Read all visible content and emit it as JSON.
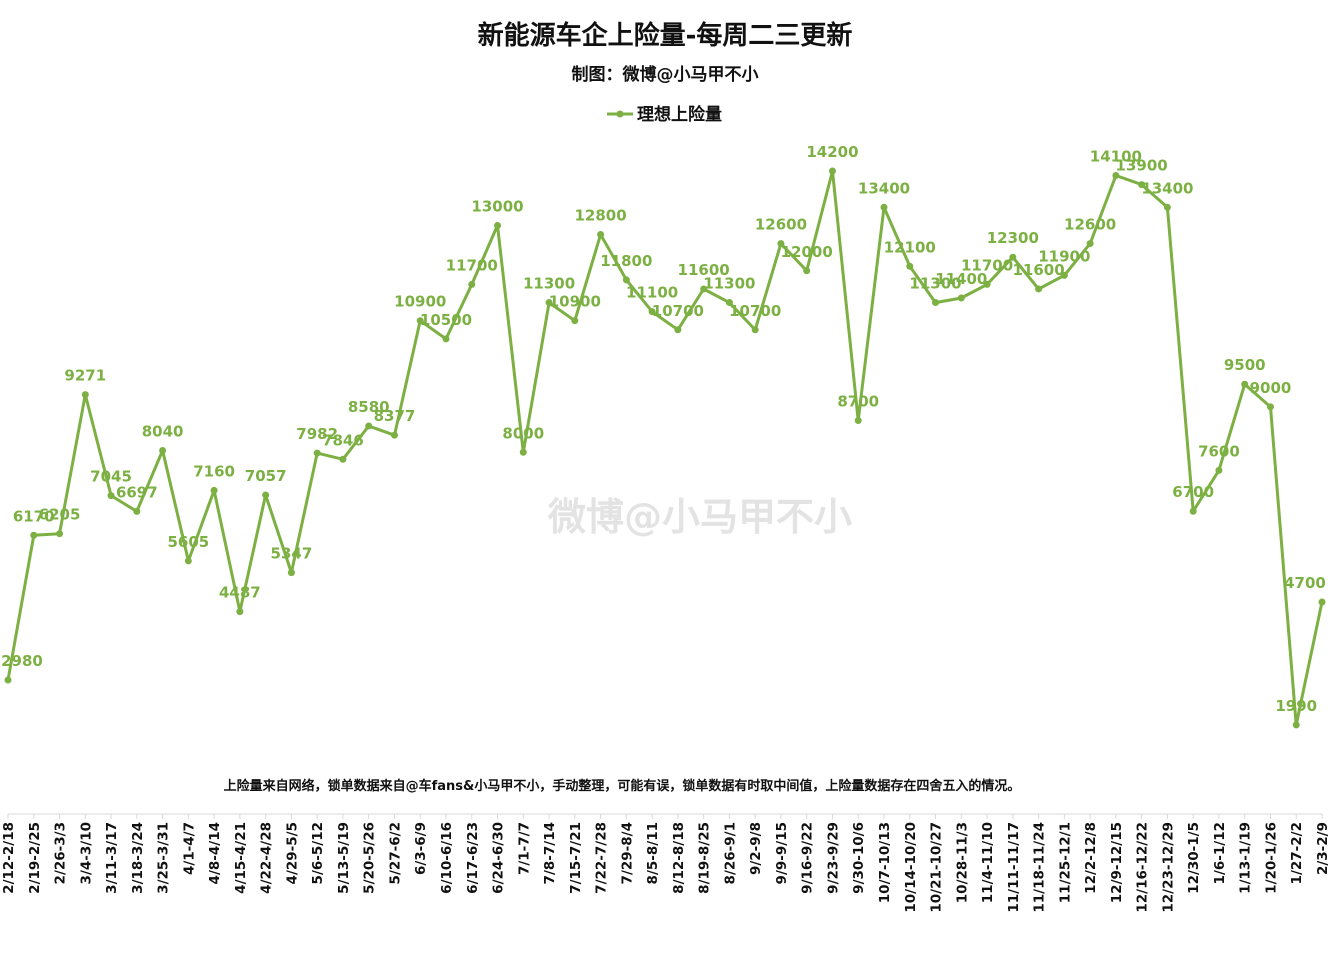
{
  "header": {
    "title": "新能源车企上险量-每周二三更新",
    "subtitle": "制图：微博@小马甲不小"
  },
  "footer": {
    "note": "上险量来自网络，锁单数据来自@车fans&小马甲不小，手动整理，可能有误，锁单数据有时取中间值，上险量数据存在四舍五入的情况。"
  },
  "watermark": "微博@小马甲不小",
  "colors": {
    "series": "#7cb043",
    "text": "#111111",
    "background": "#ffffff"
  },
  "chart_data": {
    "type": "line",
    "title": "新能源车企上险量-每周二三更新",
    "subtitle": "制图：微博@小马甲不小",
    "xlabel": "",
    "ylabel": "",
    "ylim": [
      0,
      15000
    ],
    "grid": false,
    "legend": "top-center",
    "categories": [
      "2/12-2/18",
      "2/19-2/25",
      "2/26-3/3",
      "3/4-3/10",
      "3/11-3/17",
      "3/18-3/24",
      "3/25-3/31",
      "4/1-4/7",
      "4/8-4/14",
      "4/15-4/21",
      "4/22-4/28",
      "4/29-5/5",
      "5/6-5/12",
      "5/13-5/19",
      "5/20-5/26",
      "5/27-6/2",
      "6/3-6/9",
      "6/10-6/16",
      "6/17-6/23",
      "6/24-6/30",
      "7/1-7/7",
      "7/8-7/14",
      "7/15-7/21",
      "7/22-7/28",
      "7/29-8/4",
      "8/5-8/11",
      "8/12-8/18",
      "8/19-8/25",
      "8/26-9/1",
      "9/2-9/8",
      "9/9-9/15",
      "9/16-9/22",
      "9/23-9/29",
      "9/30-10/6",
      "10/7-10/13",
      "10/14-10/20",
      "10/21-10/27",
      "10/28-11/3",
      "11/4-11/10",
      "11/11-11/17",
      "11/18-11/24",
      "11/25-12/1",
      "12/2-12/8",
      "12/9-12/15",
      "12/16-12/22",
      "12/23-12/29",
      "12/30-1/5",
      "1/6-1/12",
      "1/13-1/19",
      "1/20-1/26",
      "1/27-2/2",
      "2/3-2/9"
    ],
    "series": [
      {
        "name": "理想上险量",
        "color": "#7cb043",
        "values": [
          2980,
          6170,
          6205,
          9271,
          7045,
          6697,
          8040,
          5605,
          7160,
          4487,
          7057,
          5347,
          7982,
          7846,
          8580,
          8377,
          10900,
          10500,
          11700,
          13000,
          8000,
          11300,
          10900,
          12800,
          11800,
          11100,
          10700,
          11600,
          11300,
          10700,
          12600,
          12000,
          14200,
          8700,
          13400,
          12100,
          11300,
          11400,
          11700,
          12300,
          11600,
          11900,
          12600,
          14100,
          13900,
          13400,
          6700,
          7600,
          9500,
          9000,
          1990,
          4700
        ]
      }
    ]
  }
}
